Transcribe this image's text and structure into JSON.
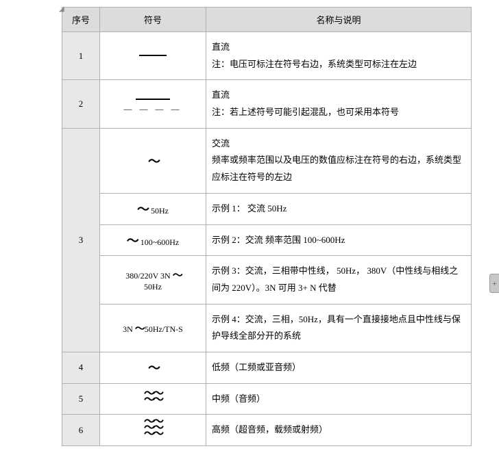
{
  "headers": {
    "seq": "序号",
    "sym": "符号",
    "desc": "名称与说明"
  },
  "rows": {
    "r1": {
      "seq": "1",
      "desc_title": "直流",
      "desc_note": "注：电压可标注在符号右边，系统类型可标注在左边"
    },
    "r2": {
      "seq": "2",
      "desc_title": "直流",
      "desc_note": "注：若上述符号可能引起混乱，也可采用本符号"
    },
    "r3": {
      "seq": "3",
      "a": {
        "desc_title": "交流",
        "desc_body": "频率或频率范围以及电压的数值应标注在符号的右边，系统类型应标注在符号的左边"
      },
      "b": {
        "sym_extra": "50Hz",
        "desc": "示例 1：  交流  50Hz"
      },
      "c": {
        "sym_extra": "100~600Hz",
        "desc": "示例 2：交流  频率范围 100~600Hz"
      },
      "d": {
        "sym_line1": "380/220V 3N",
        "sym_line2": "50Hz",
        "desc": "示例 3：交流，三相带中性线， 50Hz， 380V（中性线与相线之间为 220V）。3N 可用 3+ N 代替"
      },
      "e": {
        "sym_text": "3N",
        "sym_extra": "50Hz/TN-S",
        "desc": "示例 4：交流，三相，50Hz，具有一个直接接地点且中性线与保护导线全部分开的系统"
      }
    },
    "r4": {
      "seq": "4",
      "desc": "低频（工频或亚音频）"
    },
    "r5": {
      "seq": "5",
      "desc": "中频（音频）"
    },
    "r6": {
      "seq": "6",
      "desc": "高频（超音频，载频或射频）"
    }
  },
  "colors": {
    "header_bg": "#dcdcdc",
    "seq_bg": "#e8e8e8",
    "border": "#b0b0b0",
    "background": "#ffffff",
    "text": "#000000"
  }
}
